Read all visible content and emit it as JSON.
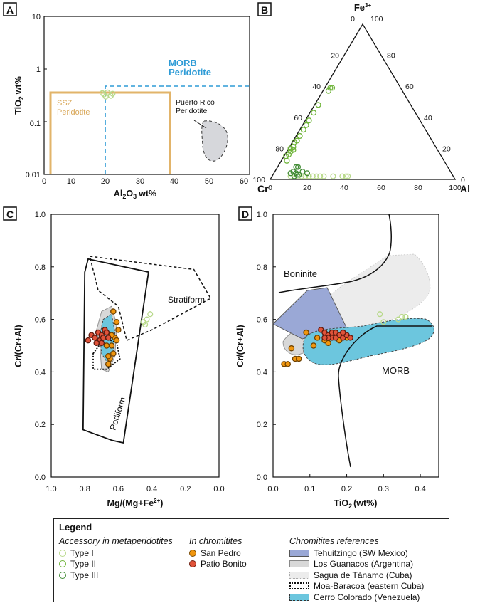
{
  "panels": {
    "A": "A",
    "B": "B",
    "C": "C",
    "D": "D"
  },
  "colors": {
    "type1": "#b8d98a",
    "type2": "#6fb43a",
    "type3": "#3f8a32",
    "san_pedro": "#f0960f",
    "patio_bonito": "#e0533a",
    "ssz": "#e2b46a",
    "morb": "#2e9bd6",
    "puerto_rico": "#d6d7db",
    "tehuitzingo": "#9aa8d6",
    "los_guanacos": "#d8d8d8",
    "sagua": "#ececec",
    "cerro_colorado": "#6cc6de"
  },
  "chart_data": [
    {
      "panel": "A",
      "type": "scatter",
      "xlabel": "Al2O3 wt%",
      "ylabel": "TiO2 wt%",
      "x_ticks": [
        "0",
        "10",
        "20",
        "30",
        "40",
        "50",
        "60"
      ],
      "y_ticks": [
        "10",
        "1",
        "0.1",
        "0.01"
      ],
      "xlim": [
        0,
        60
      ],
      "ylim": [
        0.01,
        10
      ],
      "yscale": "log",
      "fields": {
        "ssz": {
          "label": "SSZ\nPeridotite",
          "al_min": 4,
          "al_max": 42,
          "tio2_max": 0.35
        },
        "morb": {
          "label": "MORB\nPeridotite",
          "al_min": 22,
          "tio2_min": 0.5
        },
        "puerto_rico": {
          "label": "Puerto Rico\nPeridotite"
        }
      },
      "series": [
        {
          "name": "Type I",
          "points": [
            [
              17.5,
              0.33
            ],
            [
              18.5,
              0.36
            ],
            [
              19.5,
              0.31
            ],
            [
              18,
              0.3
            ],
            [
              17,
              0.35
            ],
            [
              20,
              0.34
            ]
          ]
        }
      ]
    },
    {
      "panel": "B",
      "type": "ternary",
      "apices": {
        "top": "Fe3+",
        "left": "Cr",
        "right": "Al"
      },
      "ticks": [
        "0",
        "20",
        "40",
        "60",
        "80",
        "100"
      ],
      "series": [
        {
          "name": "Type II",
          "points_cr_al_fe": [
            [
              80,
              2,
              18
            ],
            [
              79,
              1,
              20
            ],
            [
              77,
              2,
              21
            ],
            [
              75,
              1,
              24
            ],
            [
              73,
              2,
              25
            ],
            [
              70,
              2,
              28
            ],
            [
              66,
              2,
              32
            ],
            [
              63,
              2,
              35
            ],
            [
              60,
              2,
              38
            ],
            [
              55,
              2,
              43
            ],
            [
              50,
              2,
              48
            ],
            [
              40,
              3,
              57
            ],
            [
              38,
              3,
              59
            ],
            [
              37,
              4,
              59
            ],
            [
              85,
              3,
              12
            ],
            [
              82,
              2,
              16
            ],
            [
              78,
              3,
              19
            ],
            [
              84,
              1,
              15
            ]
          ]
        },
        {
          "name": "Type III",
          "points_cr_al_fe": [
            [
              86,
              12,
              2
            ],
            [
              84,
              12,
              4
            ],
            [
              82,
              10,
              8
            ],
            [
              83,
              14,
              3
            ],
            [
              85,
              10,
              5
            ],
            [
              80,
              15,
              5
            ],
            [
              87,
              9,
              4
            ],
            [
              81,
              11,
              8
            ],
            [
              78,
              18,
              4
            ],
            [
              84,
              13,
              3
            ]
          ]
        },
        {
          "name": "Type I",
          "points_cr_al_fe": [
            [
              84,
              14,
              2
            ],
            [
              86,
              12,
              2
            ],
            [
              80,
              18,
              2
            ],
            [
              76,
              22,
              2
            ],
            [
              70,
              28,
              2
            ],
            [
              60,
              38,
              2
            ],
            [
              58,
              40,
              2
            ],
            [
              57,
              41,
              2
            ],
            [
              65,
              33,
              2
            ],
            [
              78,
              20,
              2
            ],
            [
              82,
              16,
              2
            ],
            [
              88,
              10,
              2
            ],
            [
              74,
              24,
              2
            ],
            [
              72,
              26,
              2
            ]
          ]
        }
      ]
    },
    {
      "panel": "C",
      "type": "scatter",
      "xlabel": "Mg/(Mg+Fe2+)",
      "ylabel": "Cr/(Cr+Al)",
      "x_ticks": [
        "1.0",
        "0.8",
        "0.6",
        "0.4",
        "0.2",
        "0.0"
      ],
      "y_ticks": [
        "1.0",
        "0.8",
        "0.6",
        "0.4",
        "0.2",
        "0.0"
      ],
      "xlim": [
        1.0,
        0.0
      ],
      "ylim": [
        0.0,
        1.0
      ],
      "fields": {
        "podiform": {
          "label": "Podiform",
          "outline": [
            [
              0.78,
              0.83
            ],
            [
              0.42,
              0.78
            ],
            [
              0.57,
              0.13
            ],
            [
              0.64,
              0.14
            ],
            [
              0.81,
              0.18
            ],
            [
              0.8,
              0.78
            ]
          ]
        },
        "stratiform": {
          "label": "Stratiform",
          "outline": [
            [
              0.77,
              0.84
            ],
            [
              0.15,
              0.79
            ],
            [
              0.05,
              0.68
            ],
            [
              0.4,
              0.56
            ],
            [
              0.55,
              0.52
            ],
            [
              0.6,
              0.65
            ],
            [
              0.72,
              0.71
            ]
          ]
        },
        "moa_baracoa": {
          "outline": [
            [
              0.75,
              0.47
            ],
            [
              0.68,
              0.53
            ],
            [
              0.61,
              0.51
            ],
            [
              0.59,
              0.45
            ],
            [
              0.67,
              0.41
            ],
            [
              0.75,
              0.41
            ]
          ]
        },
        "los_guanacos": {
          "outline": [
            [
              0.7,
              0.63
            ],
            [
              0.64,
              0.65
            ],
            [
              0.61,
              0.58
            ],
            [
              0.62,
              0.46
            ],
            [
              0.66,
              0.4
            ],
            [
              0.7,
              0.41
            ],
            [
              0.71,
              0.5
            ],
            [
              0.73,
              0.56
            ]
          ]
        },
        "cerro_colorado": {
          "outline": [
            [
              0.69,
              0.6
            ],
            [
              0.64,
              0.62
            ],
            [
              0.62,
              0.55
            ],
            [
              0.63,
              0.48
            ],
            [
              0.67,
              0.44
            ],
            [
              0.7,
              0.47
            ],
            [
              0.71,
              0.54
            ]
          ]
        }
      },
      "series": [
        {
          "name": "Type I",
          "points": [
            [
              0.44,
              0.58
            ],
            [
              0.43,
              0.6
            ],
            [
              0.41,
              0.62
            ],
            [
              0.45,
              0.59
            ]
          ]
        },
        {
          "name": "San Pedro",
          "points": [
            [
              0.63,
              0.63
            ],
            [
              0.61,
              0.59
            ],
            [
              0.6,
              0.56
            ],
            [
              0.62,
              0.53
            ],
            [
              0.64,
              0.5
            ],
            [
              0.63,
              0.47
            ],
            [
              0.65,
              0.45
            ],
            [
              0.66,
              0.43
            ],
            [
              0.61,
              0.52
            ],
            [
              0.64,
              0.54
            ],
            [
              0.67,
              0.5
            ],
            [
              0.66,
              0.46
            ]
          ]
        },
        {
          "name": "Patio Bonito",
          "points": [
            [
              0.78,
              0.52
            ],
            [
              0.76,
              0.54
            ],
            [
              0.74,
              0.53
            ],
            [
              0.72,
              0.55
            ],
            [
              0.71,
              0.52
            ],
            [
              0.7,
              0.54
            ],
            [
              0.69,
              0.53
            ],
            [
              0.68,
              0.56
            ],
            [
              0.67,
              0.55
            ],
            [
              0.66,
              0.53
            ],
            [
              0.73,
              0.51
            ],
            [
              0.7,
              0.51
            ]
          ]
        }
      ]
    },
    {
      "panel": "D",
      "type": "scatter",
      "xlabel": "TiO2 (wt%)",
      "ylabel": "Cr/(Cr+Al)",
      "x_ticks": [
        "0.0",
        "0.1",
        "0.2",
        "0.3",
        "0.4"
      ],
      "y_ticks": [
        "1.0",
        "0.8",
        "0.6",
        "0.4",
        "0.2",
        "0.0"
      ],
      "xlim": [
        0.0,
        0.45
      ],
      "ylim": [
        0.0,
        1.0
      ],
      "fields": {
        "boninite": {
          "label": "Boninite"
        },
        "morb": {
          "label": "MORB"
        }
      },
      "series": [
        {
          "name": "Type I",
          "points": [
            [
              0.29,
              0.62
            ],
            [
              0.34,
              0.6
            ],
            [
              0.35,
              0.61
            ],
            [
              0.36,
              0.61
            ],
            [
              0.3,
              0.59
            ]
          ]
        },
        {
          "name": "San Pedro",
          "points": [
            [
              0.03,
              0.43
            ],
            [
              0.04,
              0.43
            ],
            [
              0.06,
              0.45
            ],
            [
              0.07,
              0.45
            ],
            [
              0.05,
              0.49
            ],
            [
              0.09,
              0.55
            ],
            [
              0.11,
              0.5
            ],
            [
              0.12,
              0.53
            ],
            [
              0.14,
              0.52
            ],
            [
              0.15,
              0.51
            ],
            [
              0.18,
              0.52
            ],
            [
              0.2,
              0.53
            ],
            [
              0.17,
              0.54
            ]
          ]
        },
        {
          "name": "Patio Bonito",
          "points": [
            [
              0.13,
              0.56
            ],
            [
              0.14,
              0.55
            ],
            [
              0.15,
              0.54
            ],
            [
              0.16,
              0.55
            ],
            [
              0.16,
              0.53
            ],
            [
              0.17,
              0.55
            ],
            [
              0.18,
              0.54
            ],
            [
              0.19,
              0.53
            ],
            [
              0.2,
              0.54
            ],
            [
              0.21,
              0.53
            ],
            [
              0.15,
              0.53
            ],
            [
              0.17,
              0.53
            ],
            [
              0.19,
              0.55
            ],
            [
              0.14,
              0.53
            ]
          ]
        }
      ]
    }
  ],
  "text": {
    "a_ssz": [
      "SSZ",
      "Peridotite"
    ],
    "a_morb": [
      "MORB",
      "Peridotite"
    ],
    "a_pr": [
      "Puerto Rico",
      "Peridotite"
    ],
    "b_fe": "Fe",
    "b_fe_sup": "3+",
    "b_cr": "Cr",
    "b_al": "Al",
    "c_strat": "Stratiform",
    "c_podi": "Podiform",
    "d_bon": "Boninite",
    "d_morb": "MORB",
    "y_tio2_a": "TiO",
    "y_tio2_b": "wt%",
    "x_al_a": "Al",
    "x_al_b": "O",
    "x_al_c": "wt%",
    "y_crcral": "Cr/(Cr+Al)",
    "x_mg": "Mg/(Mg+Fe",
    "x_mg_sup": "2+",
    "x_mg_end": ")",
    "x_tio2_a": "TiO",
    "x_tio2_b": "(wt%)",
    "sub2": "2",
    "sub3": "3"
  },
  "legend": {
    "title": "Legend",
    "col1": {
      "heading": "Accessory in metaperidotites",
      "items": [
        "Type I",
        "Type II",
        "Type III"
      ]
    },
    "col2": {
      "heading": "In chromitites",
      "items": [
        "San Pedro",
        "Patio Bonito"
      ]
    },
    "col3": {
      "heading": "Chromitites references",
      "items": [
        "Tehuitzingo (SW Mexico)",
        "Los Guanacos (Argentina)",
        "Sagua de Tánamo (Cuba)",
        "Moa-Baracoa (eastern Cuba)",
        "Cerro Colorado (Venezuela)"
      ]
    }
  }
}
